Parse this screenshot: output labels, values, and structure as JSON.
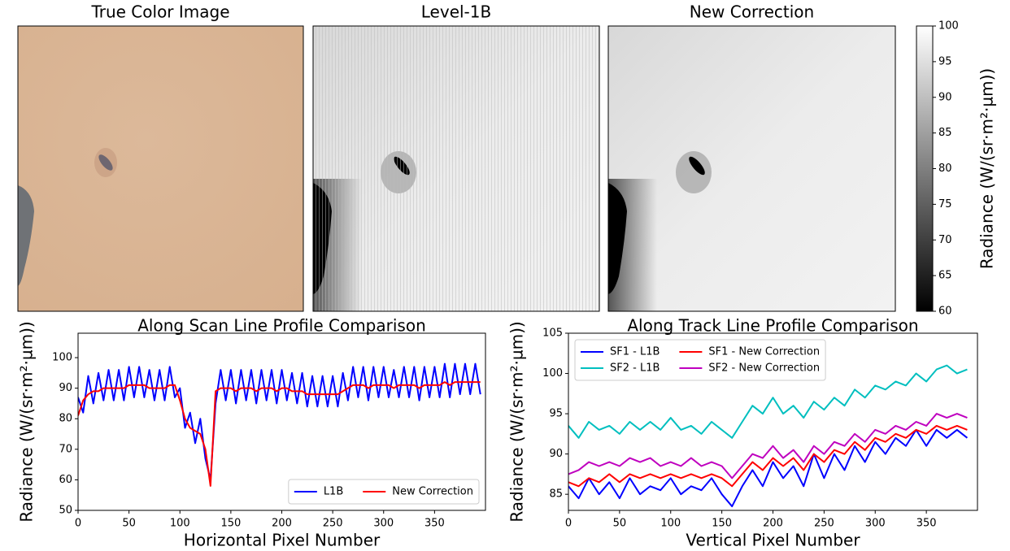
{
  "chart_data": [
    {
      "type": "image",
      "title": "True Color Image"
    },
    {
      "type": "image",
      "title": "Level-1B"
    },
    {
      "type": "image",
      "title": "New Correction"
    },
    {
      "type": "colorbar",
      "ylabel": "Radiance (W/(sr·m²·µm))",
      "ylim": [
        60,
        100
      ],
      "yticks": [
        60,
        65,
        70,
        75,
        80,
        85,
        90,
        95,
        100
      ],
      "colors": [
        "#000000",
        "#ffffff"
      ]
    },
    {
      "type": "line",
      "title": "Along Scan Line Profile Comparison",
      "xlabel": "Horizontal Pixel Number",
      "ylabel": "Radiance (W/(sr·m²·µm))",
      "x": [
        0,
        5,
        10,
        15,
        20,
        25,
        30,
        35,
        40,
        45,
        50,
        55,
        60,
        65,
        70,
        75,
        80,
        85,
        90,
        95,
        100,
        105,
        110,
        115,
        120,
        125,
        130,
        135,
        140,
        145,
        150,
        155,
        160,
        165,
        170,
        175,
        180,
        185,
        190,
        195,
        200,
        205,
        210,
        215,
        220,
        225,
        230,
        235,
        240,
        245,
        250,
        255,
        260,
        265,
        270,
        275,
        280,
        285,
        290,
        295,
        300,
        305,
        310,
        315,
        320,
        325,
        330,
        335,
        340,
        345,
        350,
        355,
        360,
        365,
        370,
        375,
        380,
        385,
        390,
        395
      ],
      "series": [
        {
          "name": "L1B",
          "color": "#0000ff",
          "width": 2,
          "values": [
            87,
            82,
            94,
            85,
            95,
            86,
            96,
            86,
            96,
            86,
            97,
            87,
            97,
            87,
            96,
            86,
            96,
            86,
            97,
            87,
            90,
            77,
            82,
            72,
            80,
            67,
            60,
            85,
            96,
            86,
            96,
            85,
            96,
            86,
            96,
            85,
            96,
            86,
            96,
            85,
            96,
            86,
            95,
            85,
            95,
            84,
            94,
            84,
            94,
            84,
            94,
            84,
            95,
            86,
            97,
            87,
            97,
            86,
            97,
            87,
            97,
            87,
            96,
            87,
            97,
            87,
            97,
            86,
            97,
            87,
            97,
            87,
            98,
            87,
            98,
            88,
            98,
            88,
            98,
            88
          ]
        },
        {
          "name": "New Correction",
          "color": "#ff0000",
          "width": 2,
          "values": [
            81,
            86,
            88,
            89,
            89,
            90,
            90,
            90,
            90,
            90,
            91,
            91,
            91,
            91,
            90,
            90,
            90,
            90,
            91,
            91,
            86,
            80,
            77,
            76,
            75,
            70,
            58,
            89,
            90,
            90,
            90,
            89,
            90,
            90,
            90,
            89,
            90,
            90,
            90,
            89,
            90,
            90,
            89,
            89,
            89,
            88,
            88,
            88,
            88,
            88,
            88,
            88,
            89,
            90,
            91,
            91,
            91,
            90,
            91,
            91,
            91,
            91,
            90,
            91,
            91,
            91,
            91,
            90,
            91,
            91,
            91,
            91,
            92,
            91,
            92,
            92,
            92,
            92,
            92,
            92
          ]
        }
      ],
      "xlim": [
        0,
        400
      ],
      "ylim": [
        50,
        108
      ],
      "xticks": [
        0,
        50,
        100,
        150,
        200,
        250,
        300,
        350
      ],
      "yticks": [
        50,
        60,
        70,
        80,
        90,
        100
      ],
      "legend": "lower right",
      "legend_columns": 2
    },
    {
      "type": "line",
      "title": "Along Track Line Profile Comparison",
      "xlabel": "Vertical Pixel Number",
      "ylabel": "Radiance (W/(sr·m²·µm))",
      "x": [
        0,
        10,
        20,
        30,
        40,
        50,
        60,
        70,
        80,
        90,
        100,
        110,
        120,
        130,
        140,
        150,
        160,
        170,
        180,
        190,
        200,
        210,
        220,
        230,
        240,
        250,
        260,
        270,
        280,
        290,
        300,
        310,
        320,
        330,
        340,
        350,
        360,
        370,
        380,
        390
      ],
      "series": [
        {
          "name": "SF1 - L1B",
          "color": "#0000ff",
          "width": 2,
          "values": [
            86,
            84.5,
            87,
            85,
            86.5,
            84.5,
            87,
            85,
            86,
            85.5,
            87,
            85,
            86,
            85.5,
            87,
            85,
            83.5,
            86,
            88,
            86,
            89,
            87,
            88.5,
            86,
            90,
            87,
            90,
            88,
            91,
            89,
            91.5,
            90,
            92,
            91,
            93,
            91,
            93,
            92,
            93,
            92
          ]
        },
        {
          "name": "SF2 - L1B",
          "color": "#00bfbf",
          "width": 2,
          "values": [
            93.5,
            92,
            94,
            93,
            93.5,
            92.5,
            94,
            93,
            94,
            93,
            94.5,
            93,
            93.5,
            92.5,
            94,
            93,
            92,
            94,
            96,
            95,
            97,
            95,
            96,
            94.5,
            96.5,
            95.5,
            97,
            96,
            98,
            97,
            98.5,
            98,
            99,
            98.5,
            100,
            99,
            100.5,
            101,
            100,
            100.5
          ]
        },
        {
          "name": "SF1 - New Correction",
          "color": "#ff0000",
          "width": 2,
          "values": [
            86.5,
            86,
            87,
            86.5,
            87.5,
            86.5,
            87.5,
            87,
            87.5,
            87,
            87.5,
            87,
            87.5,
            87,
            87.5,
            87,
            86,
            87.5,
            89,
            88,
            89.5,
            88.5,
            89.5,
            88,
            90,
            89,
            90.5,
            90,
            91.5,
            90.5,
            92,
            91.5,
            92.5,
            92,
            93,
            92.5,
            93.5,
            93,
            93.5,
            93
          ]
        },
        {
          "name": "SF2 - New Correction",
          "color": "#bf00bf",
          "width": 2,
          "values": [
            87.5,
            88,
            89,
            88.5,
            89,
            88.5,
            89.5,
            89,
            89.5,
            88.5,
            89,
            88.5,
            89.5,
            88.5,
            89,
            88.5,
            87,
            88.5,
            90,
            89.5,
            91,
            89.5,
            90.5,
            89,
            91,
            90,
            91.5,
            91,
            92.5,
            91.5,
            93,
            92.5,
            93.5,
            93,
            94,
            93.5,
            95,
            94.5,
            95,
            94.5
          ]
        }
      ],
      "xlim": [
        0,
        400
      ],
      "ylim": [
        83,
        105
      ],
      "xticks": [
        0,
        50,
        100,
        150,
        200,
        250,
        300,
        350
      ],
      "yticks": [
        85,
        90,
        95,
        100,
        105
      ],
      "legend": "upper left",
      "legend_columns": 2
    }
  ]
}
